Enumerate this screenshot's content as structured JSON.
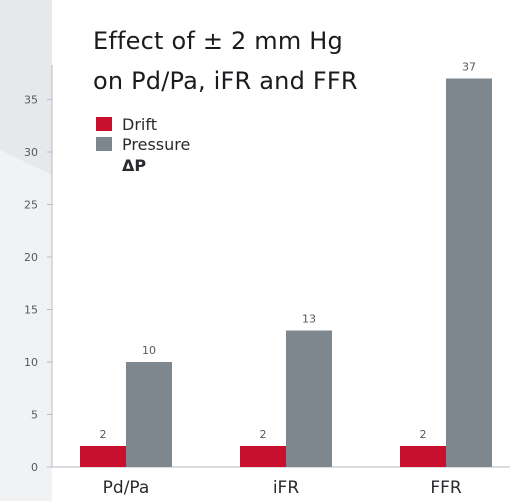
{
  "chart_data": {
    "type": "bar",
    "title_lines": [
      "Effect of ± 2 mm Hg",
      "on Pd/Pa, iFR and FFR"
    ],
    "categories": [
      "Pd/Pa",
      "iFR",
      "FFR"
    ],
    "series": [
      {
        "name": "Drift",
        "color": "#c8102e",
        "values": [
          2,
          2,
          2
        ]
      },
      {
        "name": "Pressure",
        "color": "#7f878e",
        "values": [
          10,
          13,
          37
        ]
      }
    ],
    "legend_note": "ΔP",
    "data_labels": [
      "2",
      "10",
      "2",
      "13",
      "2",
      "37"
    ],
    "y_ticks": [
      "0",
      "5",
      "10",
      "15",
      "20",
      "25",
      "30",
      "35"
    ],
    "ylim": [
      0,
      38
    ],
    "grid": false,
    "legend_position": "top-left"
  },
  "colors": {
    "page_background": "#e7e8ec",
    "plot_background": "#ffffff",
    "axis": "#b7bcc2",
    "label_text": "#555a60"
  }
}
